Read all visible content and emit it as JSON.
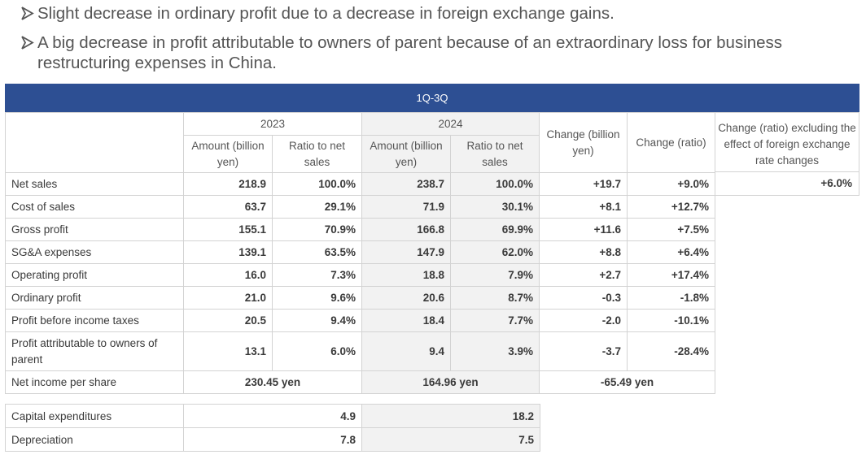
{
  "bullets": [
    "Slight decrease in ordinary profit due to a decrease in foreign exchange gains.",
    "A big decrease in profit attributable to owners of parent because of an extraordinary loss for business restructuring expenses in China."
  ],
  "table": {
    "period": "1Q-3Q",
    "year_2023": "2023",
    "year_2024": "2024",
    "amount_header": "Amount (billion yen)",
    "ratio_header": "Ratio to net sales",
    "change_header": "Change (billion yen)",
    "change_ratio_header": "Change (ratio)",
    "fx_header": "Change (ratio) excluding the effect of foreign exchange rate changes",
    "fx_value": "+6.0%",
    "rows": [
      {
        "label": "Net sales",
        "a23": "218.9",
        "r23": "100.0%",
        "a24": "238.7",
        "r24": "100.0%",
        "chg": "+19.7",
        "chgr": "+9.0%"
      },
      {
        "label": "Cost of sales",
        "a23": "63.7",
        "r23": "29.1%",
        "a24": "71.9",
        "r24": "30.1%",
        "chg": "+8.1",
        "chgr": "+12.7%"
      },
      {
        "label": "Gross profit",
        "a23": "155.1",
        "r23": "70.9%",
        "a24": "166.8",
        "r24": "69.9%",
        "chg": "+11.6",
        "chgr": "+7.5%"
      },
      {
        "label": "SG&A expenses",
        "a23": "139.1",
        "r23": "63.5%",
        "a24": "147.9",
        "r24": "62.0%",
        "chg": "+8.8",
        "chgr": "+6.4%"
      },
      {
        "label": "Operating profit",
        "a23": "16.0",
        "r23": "7.3%",
        "a24": "18.8",
        "r24": "7.9%",
        "chg": "+2.7",
        "chgr": "+17.4%"
      },
      {
        "label": "Ordinary profit",
        "a23": "21.0",
        "r23": "9.6%",
        "a24": "20.6",
        "r24": "8.7%",
        "chg": "-0.3",
        "chgr": "-1.8%"
      },
      {
        "label": "Profit before income taxes",
        "a23": "20.5",
        "r23": "9.4%",
        "a24": "18.4",
        "r24": "7.7%",
        "chg": "-2.0",
        "chgr": "-10.1%"
      },
      {
        "label": "Profit attributable to owners of parent",
        "a23": "13.1",
        "r23": "6.0%",
        "a24": "9.4",
        "r24": "3.9%",
        "chg": "-3.7",
        "chgr": "-28.4%"
      }
    ],
    "eps": {
      "label": "Net income per share",
      "v23": "230.45 yen",
      "v24": "164.96 yen",
      "chg": "-65.49 yen"
    }
  },
  "capex": [
    {
      "label": "Capital expenditures",
      "v23": "4.9",
      "v24": "18.2"
    },
    {
      "label": "Depreciation",
      "v23": "7.8",
      "v24": "7.5"
    }
  ],
  "colors": {
    "banner": "#2d4f93",
    "shade": "#f2f2f2",
    "border": "#d3d3d3"
  }
}
